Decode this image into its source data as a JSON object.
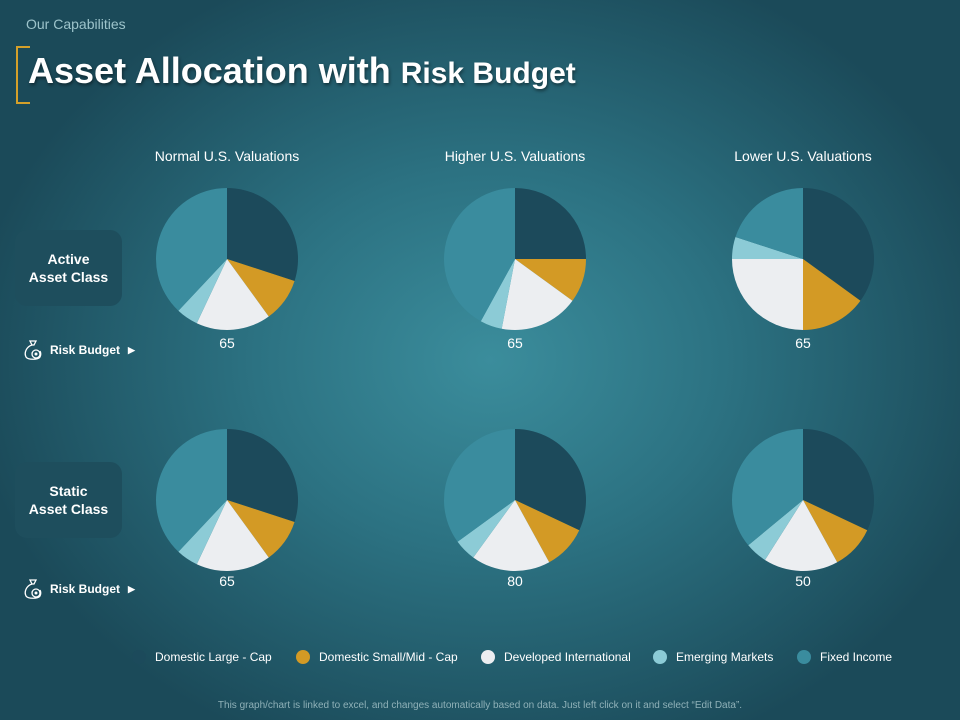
{
  "header": {
    "section_label": "Our Capabilities",
    "title_part1": "Asset Allocation with ",
    "title_part2": "Risk Budget"
  },
  "rows": [
    {
      "label_line1": "Active",
      "label_line2": "Asset Class",
      "risk_label": "Risk Budget"
    },
    {
      "label_line1": "Static",
      "label_line2": "Asset Class",
      "risk_label": "Risk Budget"
    }
  ],
  "chart_data": {
    "type": "pie",
    "columns": [
      "Normal U.S. Valuations",
      "Higher U.S. Valuations",
      "Lower U.S. Valuations"
    ],
    "legend": [
      {
        "name": "Domestic Large - Cap",
        "color": "#1c4a5b"
      },
      {
        "name": "Domestic Small/Mid - Cap",
        "color": "#d39a25"
      },
      {
        "name": "Developed International",
        "color": "#eceef1"
      },
      {
        "name": "Emerging Markets",
        "color": "#8ccbd6"
      },
      {
        "name": "Fixed Income",
        "color": "#3a8c9e"
      }
    ],
    "pies": [
      {
        "row": 0,
        "col": 0,
        "risk_budget": "65",
        "values": [
          30,
          10,
          17,
          5,
          38
        ]
      },
      {
        "row": 0,
        "col": 1,
        "risk_budget": "65",
        "values": [
          25,
          10,
          18,
          5,
          42
        ]
      },
      {
        "row": 0,
        "col": 2,
        "risk_budget": "65",
        "values": [
          35,
          15,
          25,
          5,
          20
        ]
      },
      {
        "row": 1,
        "col": 0,
        "risk_budget": "65",
        "values": [
          30,
          10,
          17,
          5,
          38
        ]
      },
      {
        "row": 1,
        "col": 1,
        "risk_budget": "80",
        "values": [
          32,
          10,
          18,
          5,
          35
        ]
      },
      {
        "row": 1,
        "col": 2,
        "risk_budget": "50",
        "values": [
          32,
          10,
          17,
          5,
          36
        ]
      }
    ]
  },
  "footer": {
    "note": "This graph/chart is linked to excel, and changes automatically based on data. Just left click on it and select “Edit Data”."
  }
}
